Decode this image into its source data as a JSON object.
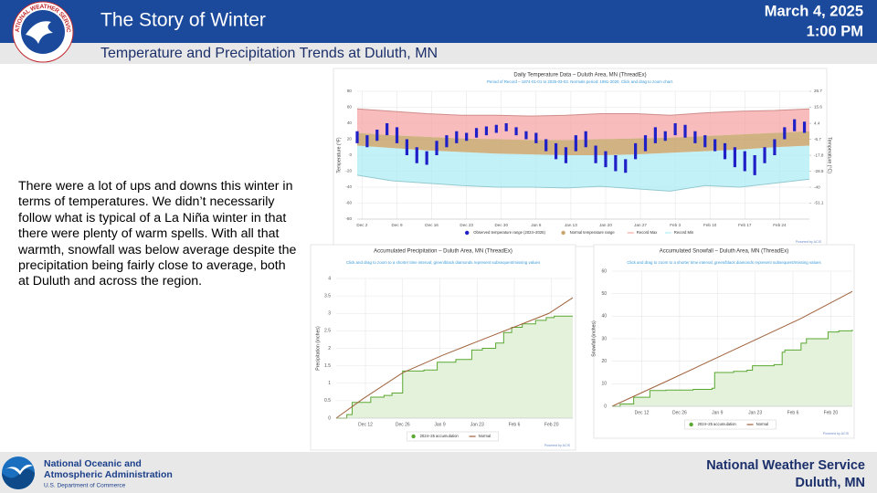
{
  "header": {
    "title": "The Story of Winter",
    "subtitle": "Temperature and Precipitation Trends at Duluth, MN",
    "date": "March 4, 2025",
    "time": "1:00 PM",
    "logo_text": "NATIONAL WEATHER SERVICE"
  },
  "body": {
    "paragraph": "There were a lot of ups and downs this winter in terms of temperatures. We didn’t necessarily follow what is typical of a La Niña winter in that there were plenty of warm spells. With all that warmth, snowfall was below average despite the precipitation being fairly close to average, both at Duluth and across the region."
  },
  "footer": {
    "agency_line1": "National Oceanic and",
    "agency_line2": "Atmospheric Administration",
    "department": "U.S. Department of Commerce",
    "office_line1": "National Weather Service",
    "office_line2": "Duluth, MN"
  },
  "chart_data": [
    {
      "type": "range",
      "title": "Daily Temperature Data – Duluth Area, MN (ThreadEx)",
      "subtitle": "Period of Record – 1874-01-01 to 2025-03-03. Normals period: 1991-2020. Click and drag to zoom chart.",
      "y_label": "Temperature (°F)",
      "y2_label": "Temperature (°C)",
      "xlim": [
        0,
        91
      ],
      "xticks": [
        {
          "value": 1,
          "label": "Dec 2"
        },
        {
          "value": 8,
          "label": "Dec 9"
        },
        {
          "value": 15,
          "label": "Dec 16"
        },
        {
          "value": 22,
          "label": "Dec 23"
        },
        {
          "value": 29,
          "label": "Dec 30"
        },
        {
          "value": 36,
          "label": "Jan 6"
        },
        {
          "value": 43,
          "label": "Jan 13"
        },
        {
          "value": 50,
          "label": "Jan 20"
        },
        {
          "value": 57,
          "label": "Jan 27"
        },
        {
          "value": 64,
          "label": "Feb 3"
        },
        {
          "value": 71,
          "label": "Feb 10"
        },
        {
          "value": 78,
          "label": "Feb 17"
        },
        {
          "value": 85,
          "label": "Feb 24"
        }
      ],
      "ylim": [
        -80,
        80
      ],
      "yticks": [
        -80,
        -60,
        -40,
        -20,
        0,
        20,
        40,
        60,
        80
      ],
      "y2lim": [
        -62.2,
        26.7
      ],
      "y2ticks": [
        -51.1,
        -40,
        -28.9,
        -17.8,
        -6.7,
        4.4,
        15.6,
        26.7
      ],
      "grid": true,
      "series": [
        {
          "name": "Record Max",
          "kind": "upper",
          "color": "#f4a6a4",
          "x": [
            0,
            7,
            14,
            21,
            28,
            35,
            42,
            49,
            56,
            63,
            70,
            77,
            84,
            91
          ],
          "values": [
            58,
            55,
            52,
            50,
            50,
            49,
            50,
            52,
            52,
            50,
            53,
            55,
            56,
            58
          ]
        },
        {
          "name": "Record Min",
          "kind": "lower",
          "color": "#aeeef4",
          "x": [
            0,
            7,
            14,
            21,
            28,
            35,
            42,
            49,
            56,
            63,
            70,
            77,
            84,
            91
          ],
          "values": [
            -25,
            -32,
            -35,
            -38,
            -40,
            -40,
            -41,
            -39,
            -42,
            -45,
            -38,
            -40,
            -35,
            -30
          ]
        },
        {
          "name": "Normal temperature range",
          "kind": "band",
          "color": "#c9a46c",
          "x": [
            0,
            7,
            14,
            21,
            28,
            35,
            42,
            49,
            56,
            63,
            70,
            77,
            84,
            91
          ],
          "high": [
            28,
            25,
            23,
            21,
            20,
            19,
            19,
            20,
            21,
            22,
            24,
            26,
            28,
            30
          ],
          "low": [
            12,
            9,
            6,
            4,
            2,
            1,
            0,
            0,
            1,
            3,
            5,
            7,
            10,
            12
          ]
        },
        {
          "name": "Observed temperature range (2024–2025)",
          "kind": "bars",
          "color": "#2020c8",
          "x": [
            0,
            2,
            4,
            6,
            8,
            10,
            12,
            14,
            16,
            18,
            20,
            22,
            24,
            26,
            28,
            30,
            32,
            34,
            36,
            38,
            40,
            42,
            44,
            46,
            48,
            50,
            52,
            54,
            56,
            58,
            60,
            62,
            64,
            66,
            68,
            70,
            72,
            74,
            76,
            78,
            80,
            82,
            84,
            86,
            88,
            90
          ],
          "high": [
            30,
            25,
            32,
            40,
            35,
            20,
            10,
            5,
            18,
            25,
            30,
            28,
            34,
            36,
            38,
            40,
            35,
            30,
            28,
            20,
            15,
            10,
            25,
            30,
            12,
            5,
            0,
            -5,
            15,
            25,
            35,
            30,
            40,
            38,
            30,
            25,
            20,
            15,
            10,
            5,
            0,
            10,
            20,
            35,
            45,
            42
          ],
          "low": [
            15,
            10,
            18,
            25,
            15,
            0,
            -10,
            -12,
            0,
            10,
            15,
            18,
            22,
            25,
            28,
            30,
            25,
            20,
            15,
            5,
            -5,
            -10,
            5,
            10,
            -10,
            -15,
            -20,
            -22,
            -5,
            5,
            15,
            18,
            25,
            22,
            15,
            10,
            5,
            -5,
            -15,
            -20,
            -25,
            -10,
            0,
            20,
            30,
            28
          ]
        }
      ],
      "credit": "Powered by ACIS"
    },
    {
      "type": "line",
      "title": "Accumulated Precipitation – Duluth Area, MN (ThreadEx)",
      "subtitle": "Click and drag to zoom to a shorter time interval; green/black diamonds represent subsequent/missing values",
      "y_label": "Precipitation (inches)",
      "xlim": [
        0,
        89
      ],
      "xticks": [
        {
          "value": 11,
          "label": "Dec 12"
        },
        {
          "value": 25,
          "label": "Dec 26"
        },
        {
          "value": 39,
          "label": "Jan 9"
        },
        {
          "value": 53,
          "label": "Jan 23"
        },
        {
          "value": 67,
          "label": "Feb 6"
        },
        {
          "value": 81,
          "label": "Feb 20"
        }
      ],
      "ylim": [
        0,
        4
      ],
      "yticks": [
        0,
        0.5,
        1,
        1.5,
        2,
        2.5,
        3,
        3.5,
        4
      ],
      "grid": true,
      "series": [
        {
          "name": "2024–25 accumulation",
          "color": "#5aa832",
          "fill": "#e4f2dc",
          "step": true,
          "x": [
            0,
            4,
            6,
            13,
            18,
            21,
            25,
            33,
            38,
            45,
            51,
            55,
            60,
            63,
            66,
            70,
            75,
            79,
            82,
            89
          ],
          "values": [
            0,
            0.1,
            0.45,
            0.6,
            0.65,
            0.72,
            1.35,
            1.38,
            1.6,
            1.68,
            1.95,
            2.0,
            2.15,
            2.45,
            2.6,
            2.7,
            2.8,
            2.88,
            2.92,
            2.92
          ]
        },
        {
          "name": "Normal",
          "color": "#a0623c",
          "x": [
            0,
            10,
            25,
            40,
            55,
            70,
            80,
            89
          ],
          "values": [
            0,
            0.55,
            1.3,
            1.8,
            2.25,
            2.7,
            3.0,
            3.45
          ]
        }
      ],
      "credit": "Powered by ACIS"
    },
    {
      "type": "line",
      "title": "Accumulated Snowfall – Duluth Area, MN (ThreadEx)",
      "subtitle": "Click and drag to zoom to a shorter time interval; green/black diamonds represent subsequent/missing values",
      "y_label": "Snowfall (inches)",
      "xlim": [
        0,
        89
      ],
      "xticks": [
        {
          "value": 11,
          "label": "Dec 12"
        },
        {
          "value": 25,
          "label": "Dec 26"
        },
        {
          "value": 39,
          "label": "Jan 9"
        },
        {
          "value": 53,
          "label": "Jan 23"
        },
        {
          "value": 67,
          "label": "Feb 6"
        },
        {
          "value": 81,
          "label": "Feb 20"
        }
      ],
      "ylim": [
        0,
        60
      ],
      "yticks": [
        0,
        10,
        20,
        30,
        40,
        50,
        60
      ],
      "grid": true,
      "series": [
        {
          "name": "2024–25 accumulation",
          "color": "#5aa832",
          "fill": "#e4f2dc",
          "step": true,
          "x": [
            0,
            3,
            8,
            14,
            20,
            30,
            37,
            38,
            45,
            50,
            52,
            60,
            63,
            64,
            70,
            72,
            80,
            84,
            89
          ],
          "values": [
            0,
            1,
            4,
            7,
            7.2,
            7.5,
            8,
            15,
            15.5,
            16,
            18,
            18.5,
            24,
            25,
            28,
            30,
            33,
            33.5,
            34
          ]
        },
        {
          "name": "Normal",
          "color": "#a0623c",
          "x": [
            0,
            20,
            45,
            70,
            89
          ],
          "values": [
            0,
            11,
            25,
            39,
            51
          ]
        }
      ],
      "credit": "Powered by ACIS"
    }
  ]
}
